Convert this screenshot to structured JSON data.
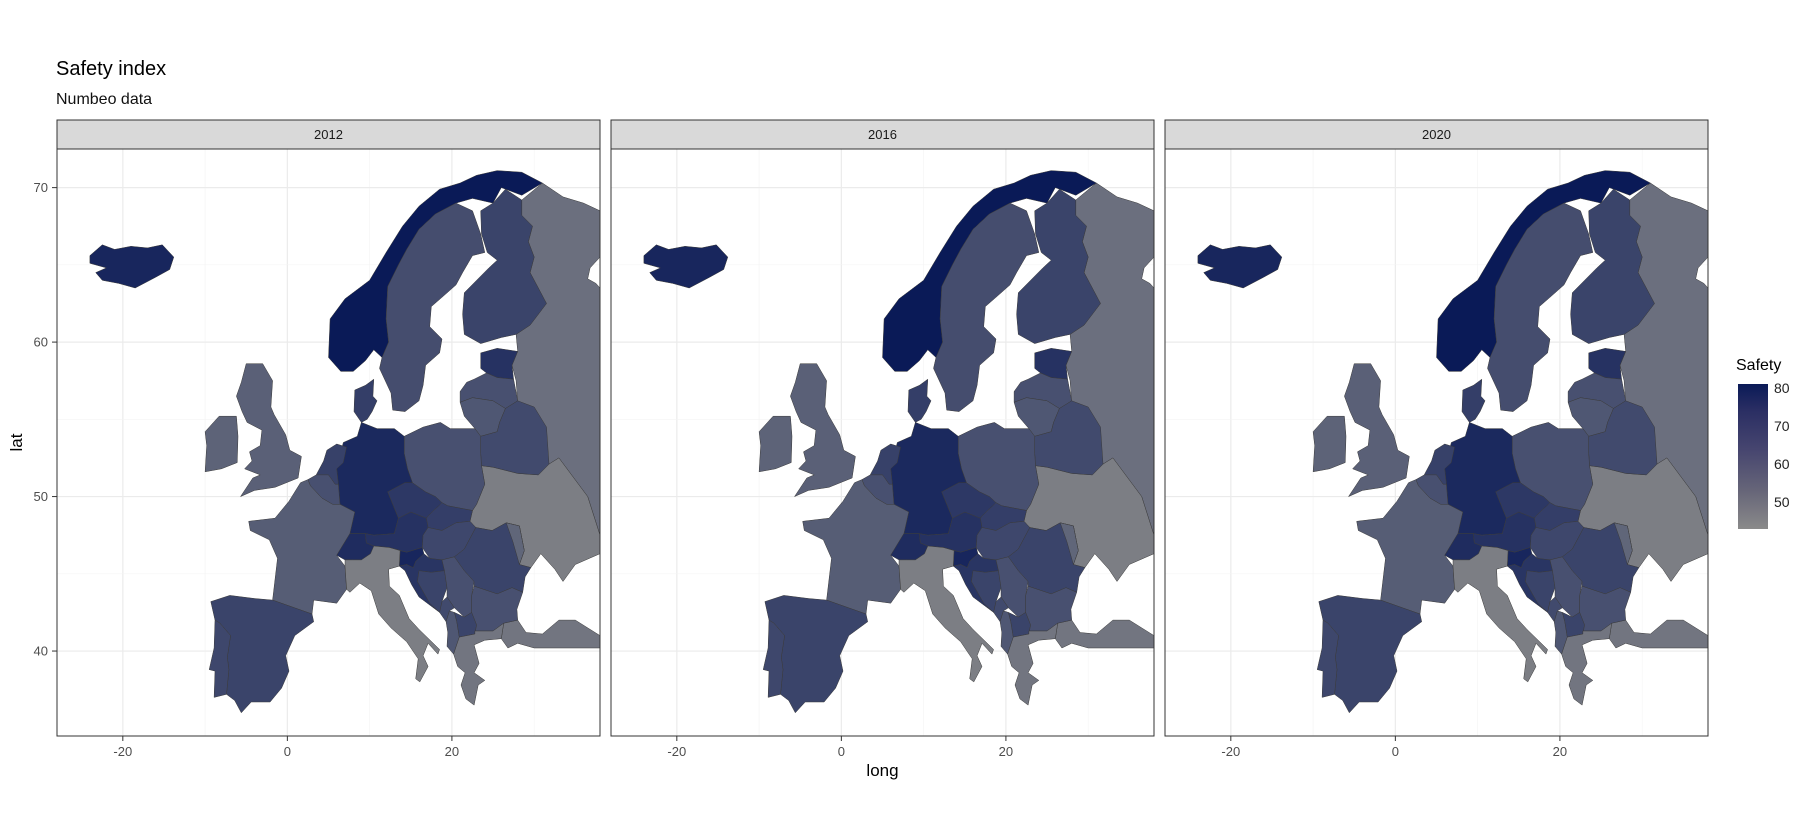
{
  "title": "Safety index",
  "subtitle": "Numbeo data",
  "x_axis_label": "long",
  "y_axis_label": "lat",
  "legend": {
    "title": "Safety",
    "ticks": [
      "80",
      "70",
      "60",
      "50"
    ],
    "tick_values": [
      80,
      70,
      60,
      50
    ],
    "range": [
      43,
      80
    ],
    "low_color": "#8a8a8a",
    "high_color": "#0a1a57"
  },
  "panels": [
    {
      "label": "2012"
    },
    {
      "label": "2016"
    },
    {
      "label": "2020"
    }
  ],
  "x_ticks": [
    "-20",
    "0",
    "20"
  ],
  "y_ticks": [
    "70",
    "60",
    "50",
    "40"
  ],
  "map": {
    "long_range": [
      -28,
      38
    ],
    "lat_range": [
      34.5,
      72.5
    ],
    "regions": [
      {
        "name": "Iceland",
        "safety": 76
      },
      {
        "name": "Norway",
        "safety": 80
      },
      {
        "name": "Sweden",
        "safety": 63
      },
      {
        "name": "Finland",
        "safety": 66
      },
      {
        "name": "Russia",
        "safety": 52
      },
      {
        "name": "Estonia",
        "safety": 72
      },
      {
        "name": "Latvia",
        "safety": 62
      },
      {
        "name": "Lithuania",
        "safety": 60
      },
      {
        "name": "Belarus",
        "safety": 64
      },
      {
        "name": "Poland",
        "safety": 62
      },
      {
        "name": "Ukraine",
        "safety": 47
      },
      {
        "name": "Germany",
        "safety": 75
      },
      {
        "name": "Denmark",
        "safety": 68
      },
      {
        "name": "Netherlands",
        "safety": 67
      },
      {
        "name": "Belgium",
        "safety": 62
      },
      {
        "name": "France",
        "safety": 58
      },
      {
        "name": "United Kingdom",
        "safety": 57
      },
      {
        "name": "Ireland",
        "safety": 56
      },
      {
        "name": "Spain",
        "safety": 66
      },
      {
        "name": "Portugal",
        "safety": 65
      },
      {
        "name": "Switzerland",
        "safety": 74
      },
      {
        "name": "Austria",
        "safety": 72
      },
      {
        "name": "Czech Republic",
        "safety": 70
      },
      {
        "name": "Slovakia",
        "safety": 68
      },
      {
        "name": "Hungary",
        "safety": 65
      },
      {
        "name": "Slovenia",
        "safety": 76
      },
      {
        "name": "Croatia",
        "safety": 71
      },
      {
        "name": "Italy",
        "safety": 47
      },
      {
        "name": "Romania",
        "safety": 66
      },
      {
        "name": "Serbia",
        "safety": 62
      },
      {
        "name": "Bosnia",
        "safety": 66
      },
      {
        "name": "Montenegro",
        "safety": 64
      },
      {
        "name": "North Macedonia",
        "safety": 66
      },
      {
        "name": "Bulgaria",
        "safety": 62
      },
      {
        "name": "Greece",
        "safety": 50
      },
      {
        "name": "Albania",
        "safety": 60
      },
      {
        "name": "Moldova",
        "safety": 55
      },
      {
        "name": "Turkey",
        "safety": 50
      }
    ]
  }
}
